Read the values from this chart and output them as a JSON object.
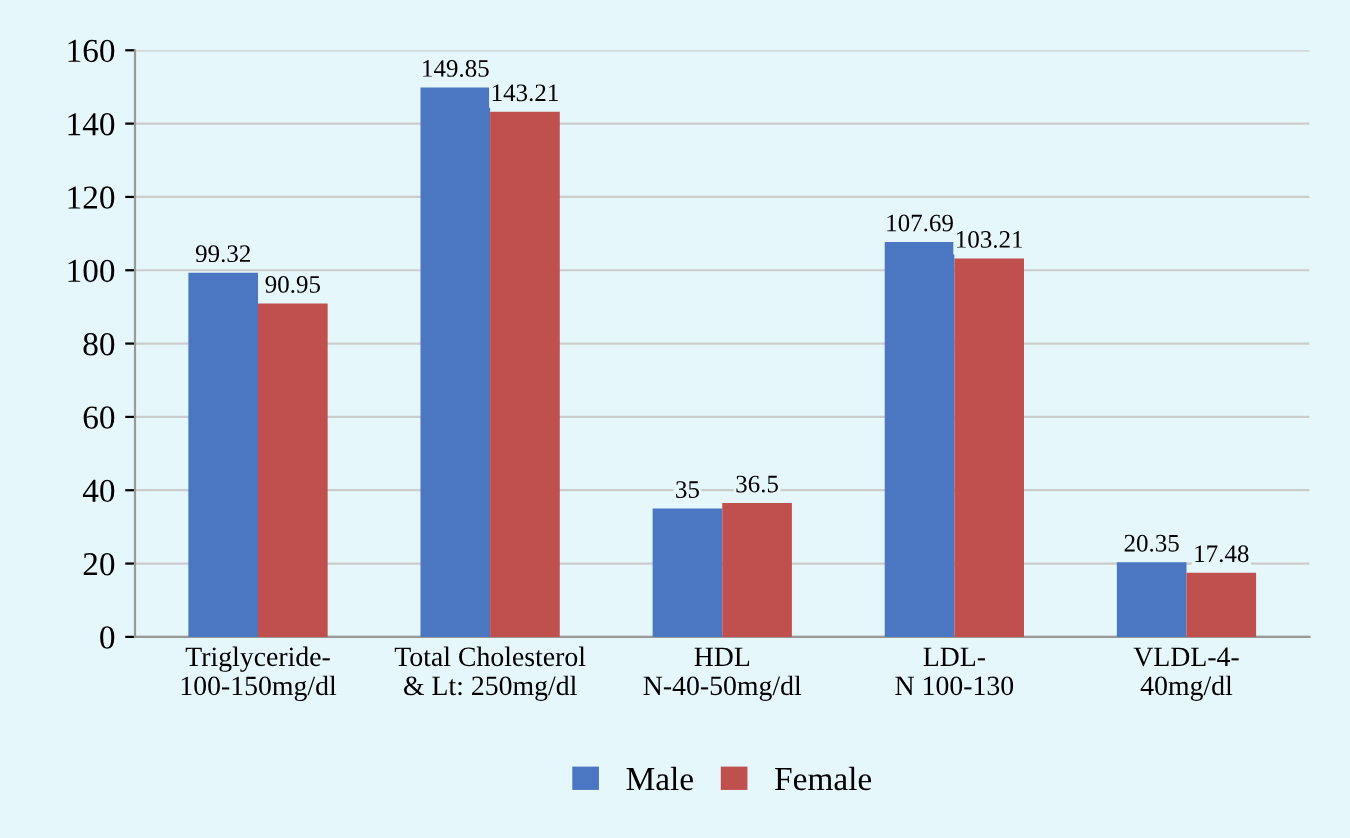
{
  "chart_data": {
    "type": "bar",
    "categories": [
      "Triglyceride-\n100-150mg/dl",
      "Total Cholesterol\n& Lt: 250mg/dl",
      "HDL\nN-40-50mg/dl",
      "LDL-\nN 100-130",
      "VLDL-4-\n40mg/dl"
    ],
    "series": [
      {
        "name": "Male",
        "color": "#4a76c2",
        "values": [
          99.32,
          149.85,
          35,
          107.69,
          20.35
        ]
      },
      {
        "name": "Female",
        "color": "#c0504d",
        "values": [
          90.95,
          143.21,
          36.5,
          103.21,
          17.48
        ]
      }
    ],
    "ylim": [
      0,
      160
    ],
    "yticks": [
      0,
      20,
      40,
      60,
      80,
      100,
      120,
      140,
      160
    ],
    "grid": "y",
    "legend": "bottom",
    "data_labels": true
  }
}
